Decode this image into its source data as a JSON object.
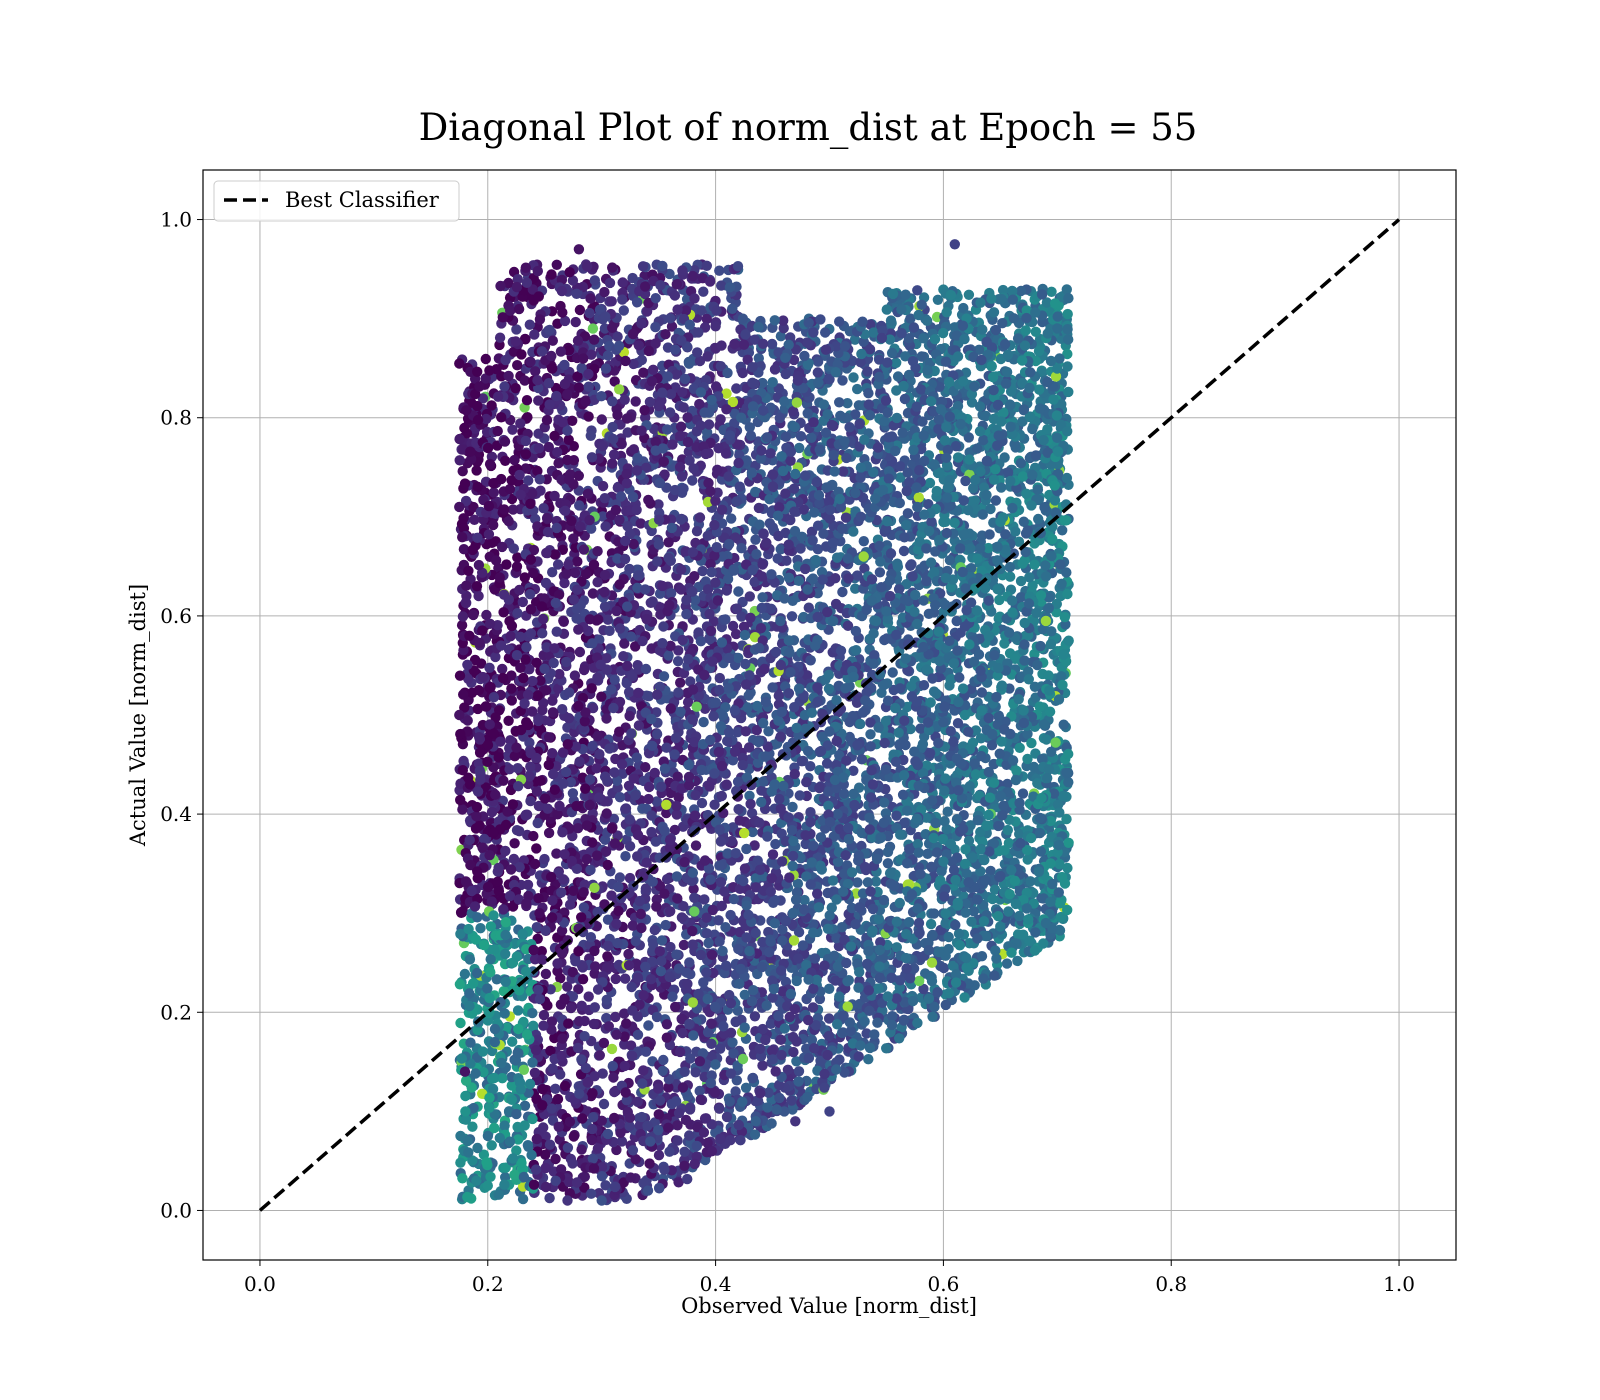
{
  "chart_data": {
    "type": "scatter",
    "title": "Diagonal Plot of norm_dist at Epoch = 55",
    "xlabel": "Observed Value [norm_dist]",
    "ylabel": "Actual Value [norm_dist]",
    "xlim": [
      -0.05,
      1.05
    ],
    "ylim": [
      -0.05,
      1.05
    ],
    "x_ticks": [
      "0.0",
      "0.2",
      "0.4",
      "0.6",
      "0.8",
      "1.0"
    ],
    "y_ticks": [
      "0.0",
      "0.2",
      "0.4",
      "0.6",
      "0.8",
      "1.0"
    ],
    "grid": true,
    "legend": {
      "position": "top-left",
      "entries": [
        "Best Classifier"
      ]
    },
    "colormap": "viridis",
    "reference_line": {
      "name": "Best Classifier",
      "x": [
        0.0,
        1.0
      ],
      "y": [
        0.0,
        1.0
      ],
      "style": "dashed",
      "color": "#000000"
    },
    "scatter_cloud": {
      "x_range": [
        0.175,
        0.71
      ],
      "y_range": [
        0.01,
        0.975
      ],
      "color_trend": "purple on the left (x≈0.2–0.35), teal/green toward the right (x≈0.6–0.7) and near the bottom-left",
      "sample_points": [
        {
          "x": 0.28,
          "y": 0.97,
          "c": 0.05
        },
        {
          "x": 0.61,
          "y": 0.975,
          "c": 0.2
        },
        {
          "x": 0.175,
          "y": 0.71,
          "c": 0.05
        },
        {
          "x": 0.175,
          "y": 0.5,
          "c": 0.05
        },
        {
          "x": 0.18,
          "y": 0.14,
          "c": 0.05
        },
        {
          "x": 0.27,
          "y": 0.01,
          "c": 0.15
        },
        {
          "x": 0.3,
          "y": 0.01,
          "c": 0.25
        },
        {
          "x": 0.71,
          "y": 0.575,
          "c": 0.45
        },
        {
          "x": 0.7,
          "y": 0.89,
          "c": 0.35
        },
        {
          "x": 0.69,
          "y": 0.29,
          "c": 0.35
        },
        {
          "x": 0.5,
          "y": 0.1,
          "c": 0.2
        },
        {
          "x": 0.47,
          "y": 0.09,
          "c": 0.15
        },
        {
          "x": 0.53,
          "y": 0.66,
          "c": 0.85
        },
        {
          "x": 0.38,
          "y": 0.21,
          "c": 0.85
        },
        {
          "x": 0.59,
          "y": 0.25,
          "c": 0.85
        },
        {
          "x": 0.69,
          "y": 0.595,
          "c": 0.85
        },
        {
          "x": 0.2,
          "y": 0.025,
          "c": 0.5
        },
        {
          "x": 0.19,
          "y": 0.03,
          "c": 0.45
        }
      ]
    }
  }
}
